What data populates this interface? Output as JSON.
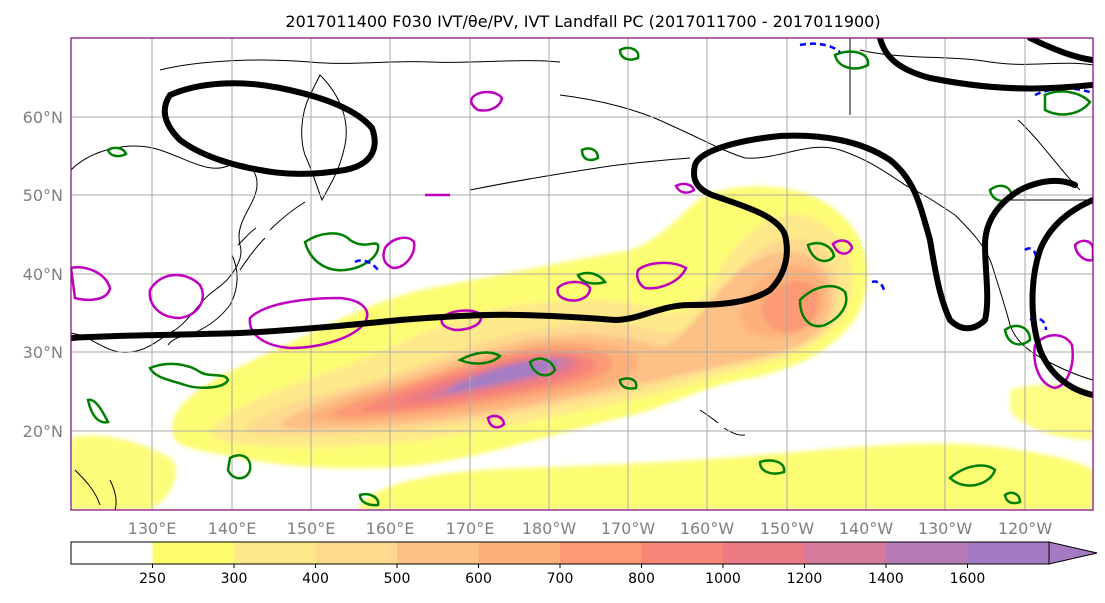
{
  "title": "2017011400 F030 IVT/θe/PV, IVT Landfall PC (2017011700 - 2017011900)",
  "lat_labels": [
    "60°N",
    "50°N",
    "40°N",
    "30°N",
    "20°N"
  ],
  "lon_labels": [
    "130°E",
    "140°E",
    "150°E",
    "160°E",
    "170°E",
    "180°W",
    "170°W",
    "160°W",
    "150°W",
    "140°W",
    "130°W",
    "120°W"
  ],
  "colorbar": {
    "levels": [
      "250",
      "300",
      "400",
      "500",
      "600",
      "700",
      "800",
      "1000",
      "1200",
      "1400",
      "1600"
    ],
    "colors": [
      "#ffffff",
      "#fdfd6e",
      "#fee98a",
      "#fed98e",
      "#fdc086",
      "#fdb07a",
      "#fb9a75",
      "#f78678",
      "#ec7a84",
      "#d47b9c",
      "#b67ab7",
      "#a47bc3"
    ],
    "extend": "max"
  },
  "colors": {
    "pc_contour": "#000000",
    "theta_e": "#008000",
    "pv": "#c000c0",
    "pv_negative": "#0000ff",
    "coastline": "#000000",
    "gridline": "#aaaaaa",
    "axis_label": "#808080",
    "map_frame": "#800080"
  },
  "chart_data": {
    "type": "map",
    "projection": "cylindrical, North Pacific",
    "lon_range": [
      "120°E",
      "110°W"
    ],
    "lat_range": [
      "10°N",
      "70°N"
    ],
    "grid": true,
    "layers": [
      {
        "field": "IVT",
        "style": "filled contours",
        "levels": [
          250,
          300,
          400,
          500,
          600,
          700,
          800,
          1000,
          1200,
          1400,
          1600
        ]
      },
      {
        "field": "θe",
        "style": "green contours"
      },
      {
        "field": "PV",
        "style": "magenta contours; blue dashed"
      },
      {
        "field": "IVT Landfall PC",
        "style": "thick black contour"
      }
    ],
    "ivt_max_region": "near 175°E–170°W, 25–30°N"
  }
}
